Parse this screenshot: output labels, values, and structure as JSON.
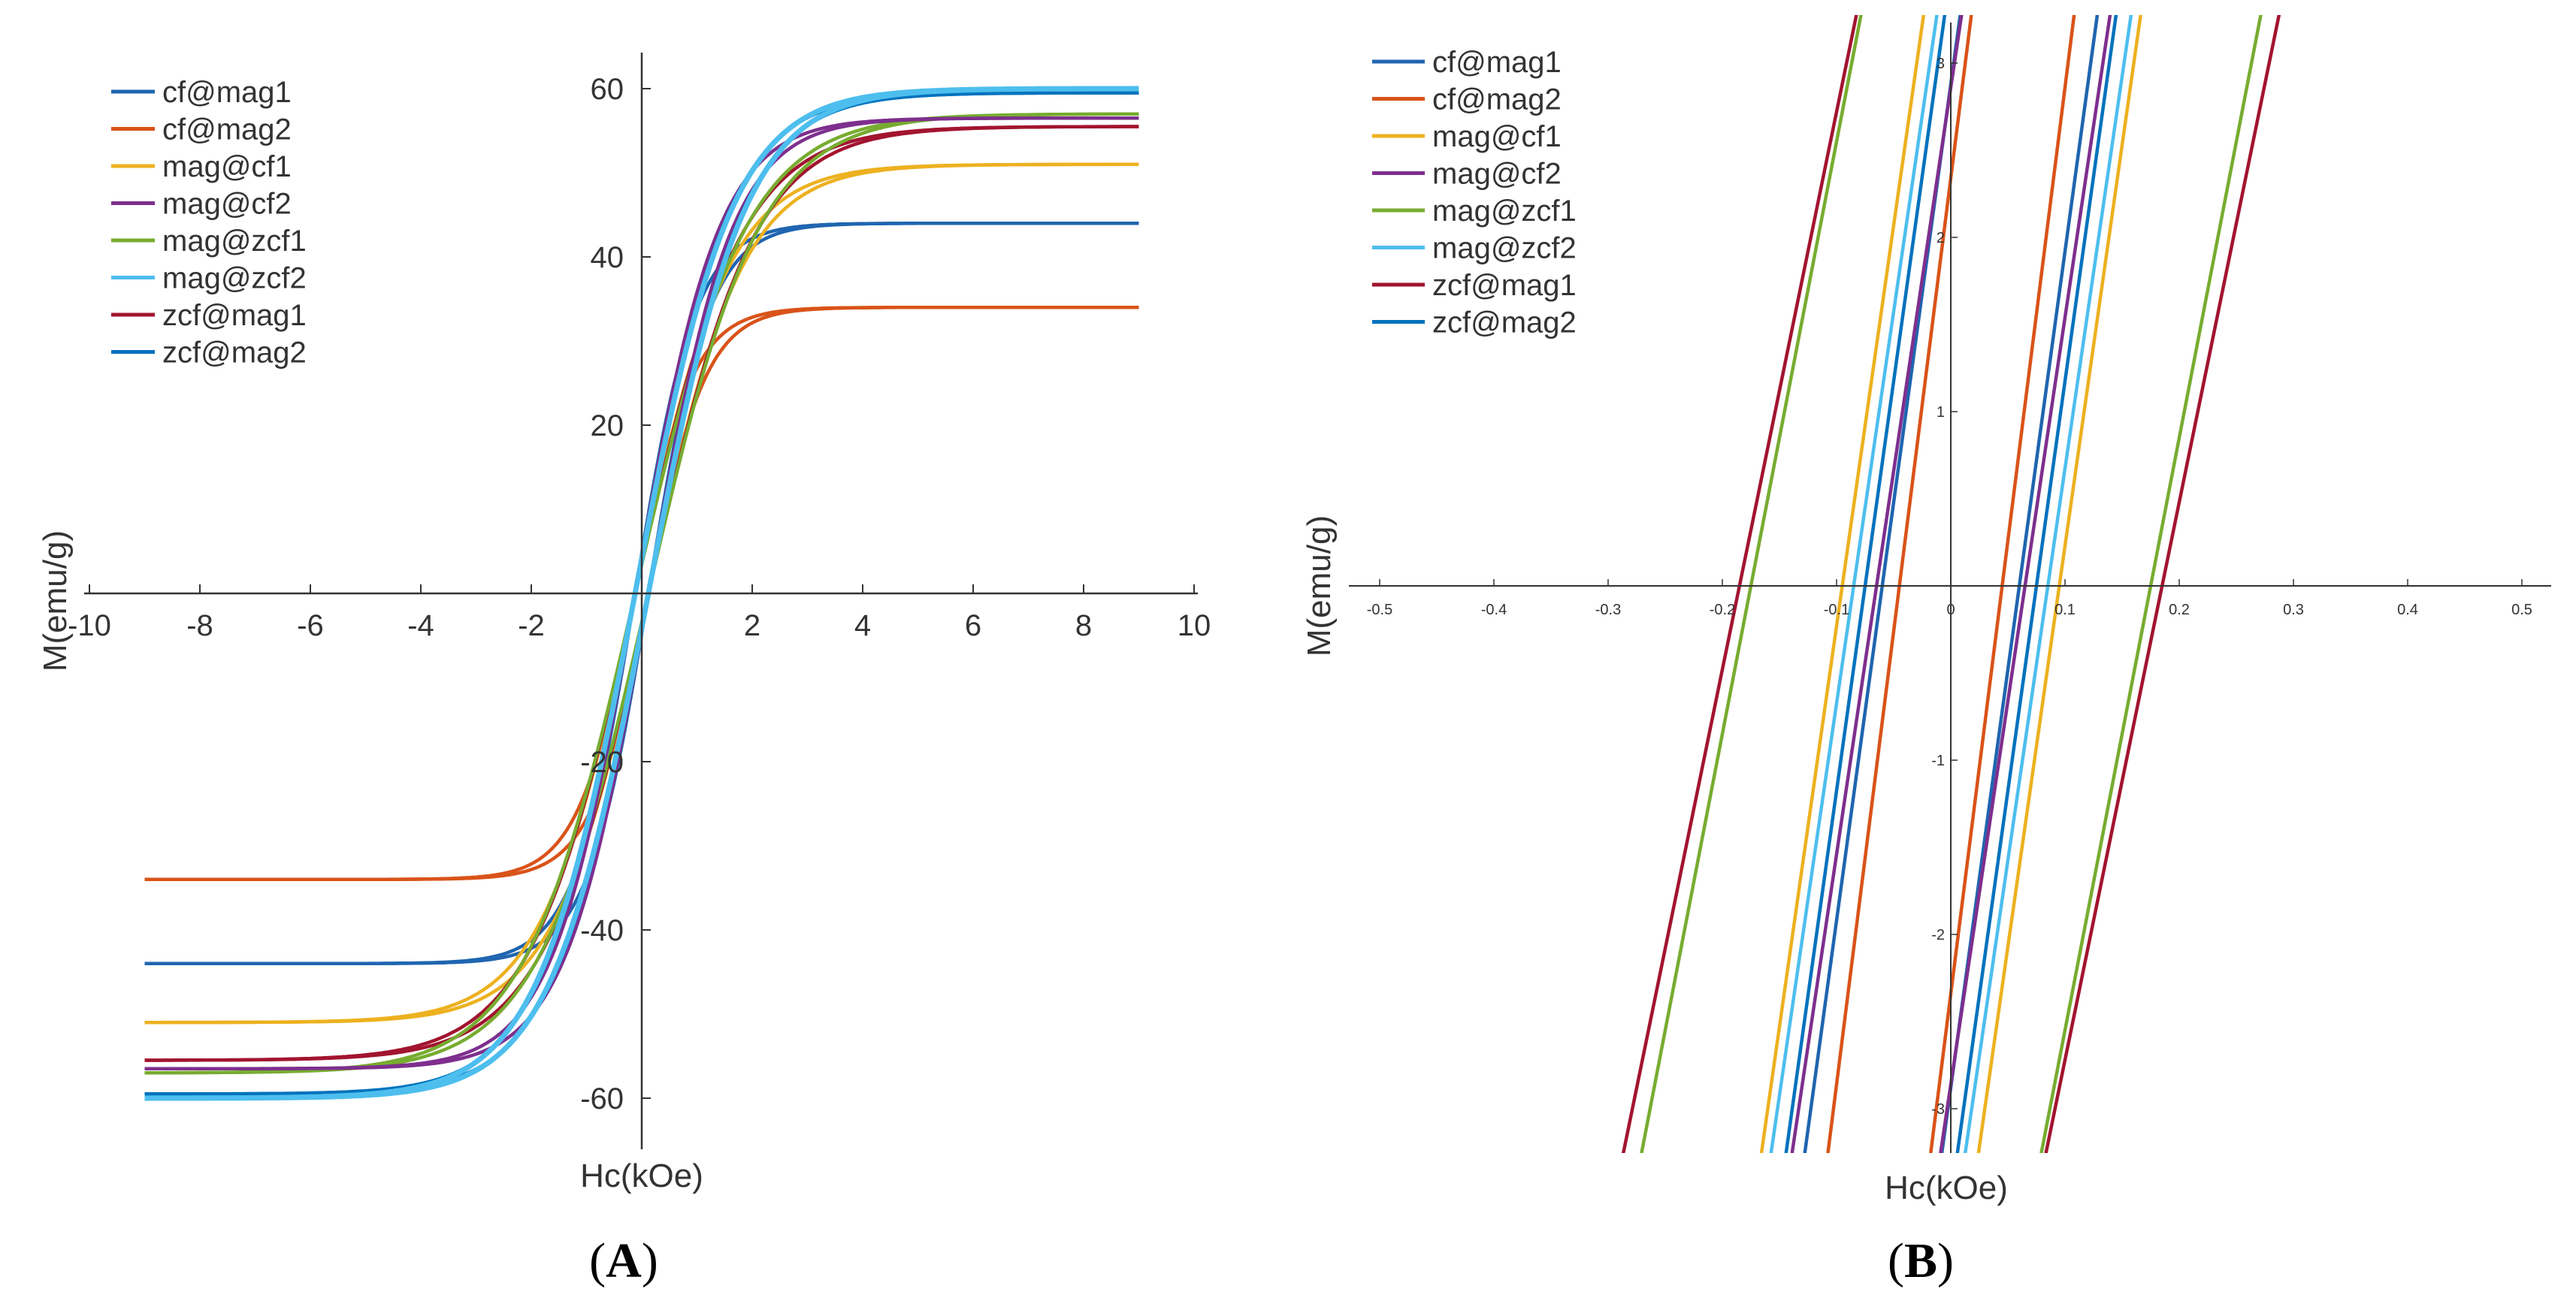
{
  "series_colors": {
    "cf@mag1": "#1f65b0",
    "cf@mag2": "#d95319",
    "mag@cf1": "#edb120",
    "mag@cf2": "#7e2f8e",
    "mag@zcf1": "#77ac30",
    "mag@zcf2": "#4dbeee",
    "zcf@mag1": "#a2142f",
    "zcf@mag2": "#0072bd"
  },
  "chart_data": [
    {
      "panel": "A",
      "type": "line",
      "title": "",
      "xlabel": "Hc(kOe)",
      "ylabel": "M(emu/g)",
      "xlim": [
        -10,
        10
      ],
      "ylim": [
        -65,
        65
      ],
      "xticks": [
        -10,
        -8,
        -6,
        -4,
        -2,
        2,
        4,
        6,
        8,
        10
      ],
      "xtick_labels": [
        "-10",
        "-8",
        "-6",
        "-4",
        "-2",
        "2",
        "4",
        "6",
        "8",
        "10"
      ],
      "yticks": [
        60,
        40,
        20,
        -20,
        -40,
        -60
      ],
      "ytick_labels": [
        "60",
        "40",
        "20",
        "-20",
        "-40",
        "-60"
      ],
      "legend_position": "top-left",
      "curve_model": "M = Ms * tanh(H / k), H from -9 to 9 kOe",
      "series": [
        {
          "name": "cf@mag1",
          "Ms": 44,
          "k": 1.1
        },
        {
          "name": "cf@mag2",
          "Ms": 34,
          "k": 1.05
        },
        {
          "name": "mag@cf1",
          "Ms": 51,
          "k": 1.7
        },
        {
          "name": "mag@cf2",
          "Ms": 56.5,
          "k": 1.5
        },
        {
          "name": "mag@zcf1",
          "Ms": 57,
          "k": 2.0
        },
        {
          "name": "mag@zcf2",
          "Ms": 60,
          "k": 1.75
        },
        {
          "name": "zcf@mag1",
          "Ms": 55.5,
          "k": 1.9
        },
        {
          "name": "zcf@mag2",
          "Ms": 59.5,
          "k": 1.7
        }
      ]
    },
    {
      "panel": "B",
      "type": "line",
      "title": "",
      "xlabel": "Hc(kOe)",
      "ylabel": "M(emu/g)",
      "xlim": [
        -0.5,
        0.5
      ],
      "ylim": [
        -3.2,
        3.2
      ],
      "xticks": [
        -0.5,
        -0.4,
        -0.3,
        -0.2,
        -0.1,
        0,
        0.1,
        0.2,
        0.3,
        0.4,
        0.5
      ],
      "xtick_labels": [
        "-0.5",
        "-0.4",
        "-0.3",
        "-0.2",
        "-0.1",
        "0",
        "0.1",
        "0.2",
        "0.3",
        "0.4",
        "0.5"
      ],
      "yticks": [
        3,
        2,
        1,
        -1,
        -2,
        -3
      ],
      "ytick_labels": [
        "3",
        "2",
        "1",
        "-1",
        "-2",
        "-3"
      ],
      "legend_position": "top-left",
      "curve_model": "near-linear loop branches through (+Hc, 0) and (-Hc, 0)",
      "series": [
        {
          "name": "cf@mag1",
          "Hc": 0.06,
          "slope": 48
        },
        {
          "name": "cf@mag2",
          "Hc": 0.045,
          "slope": 52
        },
        {
          "name": "mag@cf1",
          "Hc": 0.095,
          "slope": 46
        },
        {
          "name": "mag@cf2",
          "Hc": 0.065,
          "slope": 44
        },
        {
          "name": "mag@zcf1",
          "Hc": 0.175,
          "slope": 34
        },
        {
          "name": "mag@zcf2",
          "Hc": 0.085,
          "slope": 45
        },
        {
          "name": "zcf@mag1",
          "Hc": 0.185,
          "slope": 32
        },
        {
          "name": "zcf@mag2",
          "Hc": 0.075,
          "slope": 47
        }
      ]
    }
  ],
  "legend_labels": [
    "cf@mag1",
    "cf@mag2",
    "mag@cf1",
    "mag@cf2",
    "mag@zcf1",
    "mag@zcf2",
    "zcf@mag1",
    "zcf@mag2"
  ],
  "panel_labels": {
    "a_open": "(",
    "a_letter": "A",
    "a_close": ")",
    "b_open": "(",
    "b_letter": "B",
    "b_close": ")"
  },
  "axis_labels": {
    "a_x": "Hc(kOe)",
    "a_y": "M(emu/g)",
    "b_x": "Hc(kOe)",
    "b_y": "M(emu/g)"
  }
}
